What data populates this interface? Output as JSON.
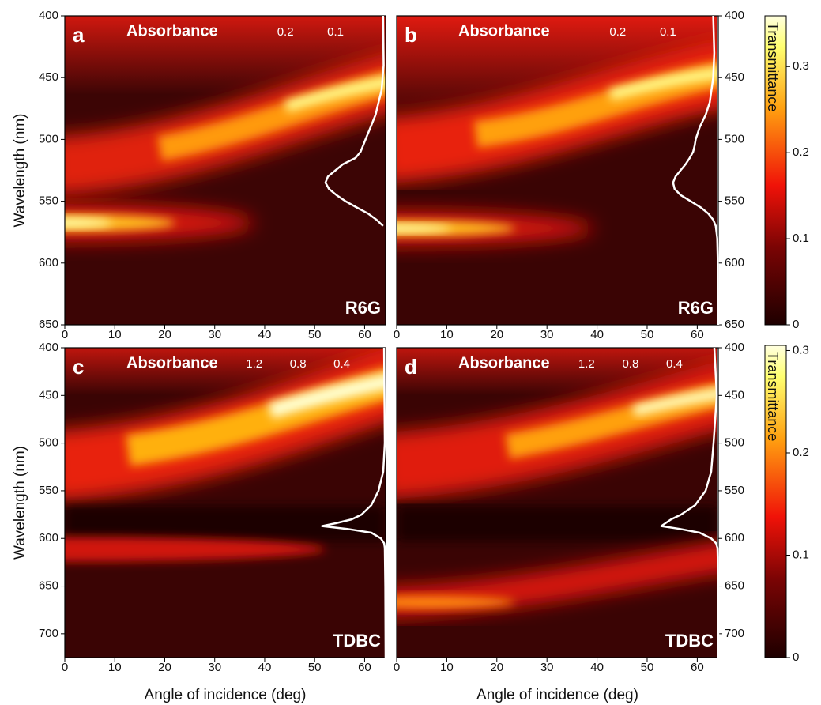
{
  "chart_data": [
    {
      "type": "heatmap",
      "label": "a",
      "ylabel": "Wavelength (nm)",
      "annotation": "R6G",
      "xlim": [
        0,
        64.2
      ],
      "xticks": [
        0,
        10,
        20,
        30,
        40,
        50,
        60
      ],
      "ylim": [
        400,
        650
      ],
      "yticks": [
        400,
        450,
        500,
        550,
        600,
        650
      ],
      "y_axis_side": "left",
      "absorbance": {
        "title": "Absorbance",
        "xlim": [
          0.64,
          0
        ],
        "xticks": [
          0.2,
          0.1
        ],
        "color": "#ffffff",
        "wavelength": [
          400,
          440,
          460,
          480,
          490,
          500,
          505,
          510,
          515,
          520,
          525,
          530,
          535,
          540,
          545,
          550,
          555,
          560,
          565,
          570
        ],
        "values": [
          0.005,
          0.004,
          0.008,
          0.02,
          0.03,
          0.04,
          0.045,
          0.05,
          0.06,
          0.085,
          0.1,
          0.115,
          0.12,
          0.113,
          0.098,
          0.08,
          0.058,
          0.035,
          0.018,
          0.005
        ]
      }
    },
    {
      "type": "heatmap",
      "label": "b",
      "annotation": "R6G",
      "xlim": [
        0,
        64.2
      ],
      "xticks": [
        0,
        10,
        20,
        30,
        40,
        50,
        60
      ],
      "ylim": [
        400,
        650
      ],
      "yticks": [
        400,
        450,
        500,
        550,
        600,
        650
      ],
      "y_axis_side": "right",
      "absorbance": {
        "title": "Absorbance",
        "xlim": [
          0.64,
          0
        ],
        "xticks": [
          0.2,
          0.1
        ],
        "color": "#ffffff",
        "wavelength": [
          400,
          430,
          450,
          470,
          480,
          490,
          500,
          505,
          510,
          515,
          520,
          525,
          530,
          535,
          540,
          545,
          550,
          555,
          560,
          565,
          570,
          580,
          600,
          650
        ],
        "values": [
          0.01,
          0.008,
          0.01,
          0.017,
          0.025,
          0.037,
          0.045,
          0.047,
          0.05,
          0.057,
          0.065,
          0.075,
          0.085,
          0.09,
          0.087,
          0.075,
          0.055,
          0.035,
          0.02,
          0.01,
          0.005,
          0.002,
          0.001,
          0
        ]
      }
    },
    {
      "type": "heatmap",
      "label": "c",
      "ylabel": "Wavelength (nm)",
      "xlabel": "Angle of incidence (deg)",
      "annotation": "TDBC",
      "xlim": [
        0,
        64.2
      ],
      "xticks": [
        0,
        10,
        20,
        30,
        40,
        50,
        60
      ],
      "ylim": [
        400,
        725
      ],
      "yticks": [
        400,
        450,
        500,
        550,
        600,
        650,
        700
      ],
      "y_axis_side": "left",
      "absorbance": {
        "title": "Absorbance",
        "xlim": [
          2.93,
          0
        ],
        "xticks": [
          1.2,
          0.8,
          0.4
        ],
        "color": "#ffffff",
        "wavelength": [
          400,
          500,
          530,
          550,
          565,
          575,
          580,
          584,
          587,
          590,
          594,
          600,
          605,
          610,
          650,
          725
        ],
        "values": [
          0.014,
          0.007,
          0.022,
          0.065,
          0.13,
          0.22,
          0.31,
          0.45,
          0.58,
          0.35,
          0.13,
          0.043,
          0.014,
          0.007,
          0.003,
          0
        ]
      }
    },
    {
      "type": "heatmap",
      "label": "d",
      "xlabel": "Angle of incidence (deg)",
      "annotation": "TDBC",
      "xlim": [
        0,
        64.2
      ],
      "xticks": [
        0,
        10,
        20,
        30,
        40,
        50,
        60
      ],
      "ylim": [
        400,
        725
      ],
      "yticks": [
        400,
        450,
        500,
        550,
        600,
        650,
        700
      ],
      "y_axis_side": "right",
      "absorbance": {
        "title": "Absorbance",
        "xlim": [
          2.93,
          0
        ],
        "xticks": [
          1.2,
          0.8,
          0.4
        ],
        "color": "#ffffff",
        "wavelength": [
          400,
          450,
          500,
          530,
          550,
          565,
          575,
          580,
          584,
          587,
          590,
          594,
          600,
          605,
          610,
          650,
          725
        ],
        "values": [
          0.036,
          0.014,
          0.043,
          0.065,
          0.115,
          0.21,
          0.34,
          0.43,
          0.48,
          0.52,
          0.35,
          0.17,
          0.065,
          0.02,
          0.007,
          0,
          0
        ]
      }
    },
    {
      "type": "colorbar",
      "label": "Transmittance",
      "ylim": [
        0,
        0.359
      ],
      "yticks": [
        0,
        0.1,
        0.2,
        0.3
      ]
    },
    {
      "type": "colorbar",
      "label": "Transmittance",
      "ylim": [
        0,
        0.305
      ],
      "yticks": [
        0,
        0.1,
        0.2,
        0.3
      ]
    }
  ]
}
